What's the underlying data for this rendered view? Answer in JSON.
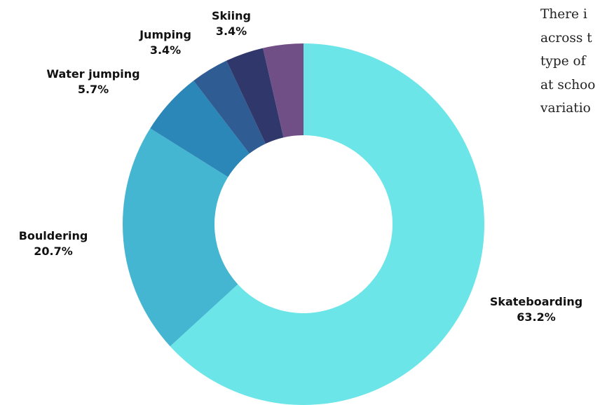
{
  "chart_data": {
    "type": "donut",
    "title": "",
    "slices": [
      {
        "label": "Skateboarding",
        "value": 63.2,
        "display": "63.2%",
        "color": "#6be5e8"
      },
      {
        "label": "Bouldering",
        "value": 20.7,
        "display": "20.7%",
        "color": "#44b6d2"
      },
      {
        "label": "Water jumping",
        "value": 5.7,
        "display": "5.7%",
        "color": "#2b87b8"
      },
      {
        "label": "Jumping",
        "value": 3.4,
        "display": "3.4%",
        "color": "#2f5c93"
      },
      {
        "label": "Skiing",
        "value": 3.4,
        "display": "3.4%",
        "color": "#30386b"
      },
      {
        "label": "",
        "value": 3.6,
        "display": "",
        "color": "#704e86"
      }
    ]
  },
  "text_lines": [
    "There i",
    "across t",
    "type of",
    "at schoo",
    "variatio"
  ]
}
